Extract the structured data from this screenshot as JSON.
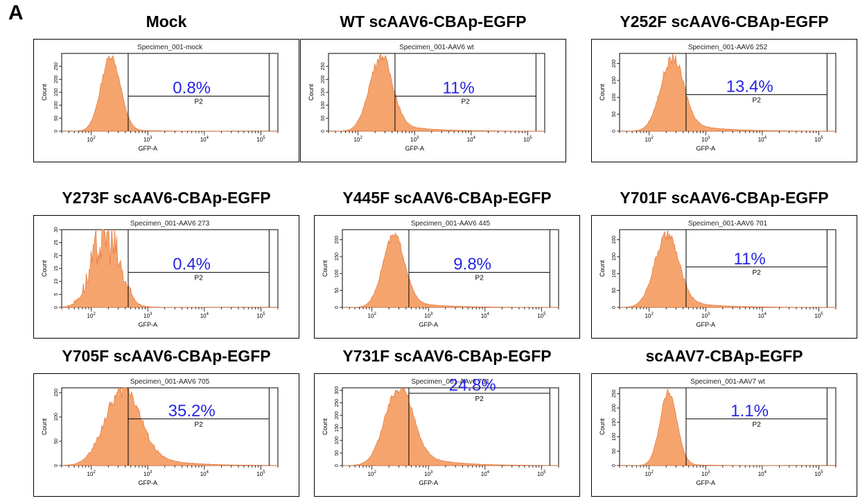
{
  "panel_label": "A",
  "colors": {
    "histogram_fill": "#f5a46e",
    "histogram_stroke": "#e0743a",
    "percent_text": "#2626e0",
    "axis": "#000000"
  },
  "chart_data": [
    {
      "type": "histogram",
      "title": "Mock",
      "specimen": "Specimen_001-mock",
      "percent": "0.8%",
      "gate": "P2",
      "xlabel": "GFP-A",
      "ylabel": "Count",
      "x_scale": "log",
      "xlim": [
        30,
        200000
      ],
      "ylim": [
        0,
        300
      ],
      "y_ticks": [
        0,
        50,
        100,
        150,
        200,
        250
      ],
      "gate_start": 450,
      "gate_end": 140000,
      "gate_level": 0.45,
      "peak": 220,
      "peak_height": 290,
      "spread": 0.17,
      "tail": 0.02,
      "noise": 0.05
    },
    {
      "type": "histogram",
      "title": "WT scAAV6-CBAp-EGFP",
      "specimen": "Specimen_001-AAV6 wt",
      "percent": "11%",
      "gate": "P2",
      "xlabel": "GFP-A",
      "ylabel": "Count",
      "x_scale": "log",
      "xlim": [
        30,
        200000
      ],
      "ylim": [
        0,
        300
      ],
      "y_ticks": [
        0,
        50,
        100,
        150,
        200,
        250
      ],
      "gate_start": 450,
      "gate_end": 140000,
      "gate_level": 0.45,
      "peak": 250,
      "peak_height": 285,
      "spread": 0.2,
      "tail": 0.14,
      "noise": 0.06
    },
    {
      "type": "histogram",
      "title": "Y252F scAAV6-CBAp-EGFP",
      "specimen": "Specimen_001-AAV6 252",
      "percent": "13.4%",
      "gate": "P2",
      "xlabel": "GFP-A",
      "ylabel": "Count",
      "x_scale": "log",
      "xlim": [
        30,
        200000
      ],
      "ylim": [
        0,
        230
      ],
      "y_ticks": [
        0,
        50,
        100,
        150,
        200
      ],
      "gate_start": 450,
      "gate_end": 140000,
      "gate_level": 0.47,
      "peak": 250,
      "peak_height": 210,
      "spread": 0.2,
      "tail": 0.17,
      "noise": 0.07
    },
    {
      "type": "histogram",
      "title": "Y273F scAAV6-CBAp-EGFP",
      "specimen": "Specimen_001-AAV6 273",
      "percent": "0.4%",
      "gate": "P2",
      "xlabel": "GFP-A",
      "ylabel": "Count",
      "x_scale": "log",
      "xlim": [
        30,
        200000
      ],
      "ylim": [
        0,
        30
      ],
      "y_ticks": [
        0,
        5,
        10,
        15,
        20,
        25,
        30
      ],
      "gate_start": 450,
      "gate_end": 140000,
      "gate_level": 0.45,
      "peak": 180,
      "peak_height": 28,
      "spread": 0.24,
      "tail": 0.01,
      "noise": 0.4
    },
    {
      "type": "histogram",
      "title": "Y445F scAAV6-CBAp-EGFP",
      "specimen": "Specimen_001-AAV6 445",
      "percent": "9.8%",
      "gate": "P2",
      "xlabel": "GFP-A",
      "ylabel": "Count",
      "x_scale": "log",
      "xlim": [
        30,
        200000
      ],
      "ylim": [
        0,
        230
      ],
      "y_ticks": [
        0,
        50,
        100,
        150,
        200
      ],
      "gate_start": 450,
      "gate_end": 140000,
      "gate_level": 0.45,
      "peak": 240,
      "peak_height": 210,
      "spread": 0.19,
      "tail": 0.12,
      "noise": 0.05
    },
    {
      "type": "histogram",
      "title": "Y701F scAAV6-CBAp-EGFP",
      "specimen": "Specimen_001-AAV6 701",
      "percent": "11%",
      "gate": "P2",
      "xlabel": "GFP-A",
      "ylabel": "Count",
      "x_scale": "log",
      "xlim": [
        30,
        200000
      ],
      "ylim": [
        0,
        230
      ],
      "y_ticks": [
        0,
        50,
        100,
        150,
        200
      ],
      "gate_start": 450,
      "gate_end": 140000,
      "gate_level": 0.52,
      "peak": 200,
      "peak_height": 210,
      "spread": 0.21,
      "tail": 0.14,
      "noise": 0.08
    },
    {
      "type": "histogram",
      "title": "Y705F scAAV6-CBAp-EGFP",
      "specimen": "Specimen_001-AAV6 705",
      "percent": "35.2%",
      "gate": "P2",
      "xlabel": "GFP-A",
      "ylabel": "Count",
      "x_scale": "log",
      "xlim": [
        30,
        200000
      ],
      "ylim": [
        0,
        160
      ],
      "y_ticks": [
        0,
        50,
        100,
        150
      ],
      "gate_start": 450,
      "gate_end": 140000,
      "gate_level": 0.6,
      "peak": 340,
      "peak_height": 150,
      "spread": 0.3,
      "tail": 0.3,
      "noise": 0.1
    },
    {
      "type": "histogram",
      "title": "Y731F scAAV6-CBAp-EGFP",
      "specimen": "Specimen_001-AAv6 731",
      "percent": "24.8%",
      "gate": "P2",
      "xlabel": "GFP-A",
      "ylabel": "Count",
      "x_scale": "log",
      "xlim": [
        30,
        200000
      ],
      "ylim": [
        0,
        310
      ],
      "y_ticks": [
        0,
        50,
        100,
        150,
        200,
        250,
        300
      ],
      "gate_start": 450,
      "gate_end": 140000,
      "gate_level": 0.93,
      "peak": 290,
      "peak_height": 300,
      "spread": 0.24,
      "tail": 0.25,
      "noise": 0.06
    },
    {
      "type": "histogram",
      "title": "scAAV7-CBAp-EGFP",
      "specimen": "Specimen_001-AAV7 wt",
      "percent": "1.1%",
      "gate": "P2",
      "xlabel": "GFP-A",
      "ylabel": "Count",
      "x_scale": "log",
      "xlim": [
        30,
        200000
      ],
      "ylim": [
        0,
        270
      ],
      "y_ticks": [
        0,
        50,
        100,
        150,
        200,
        250
      ],
      "gate_start": 450,
      "gate_end": 140000,
      "gate_level": 0.6,
      "peak": 220,
      "peak_height": 255,
      "spread": 0.15,
      "tail": 0.02,
      "noise": 0.05
    }
  ]
}
